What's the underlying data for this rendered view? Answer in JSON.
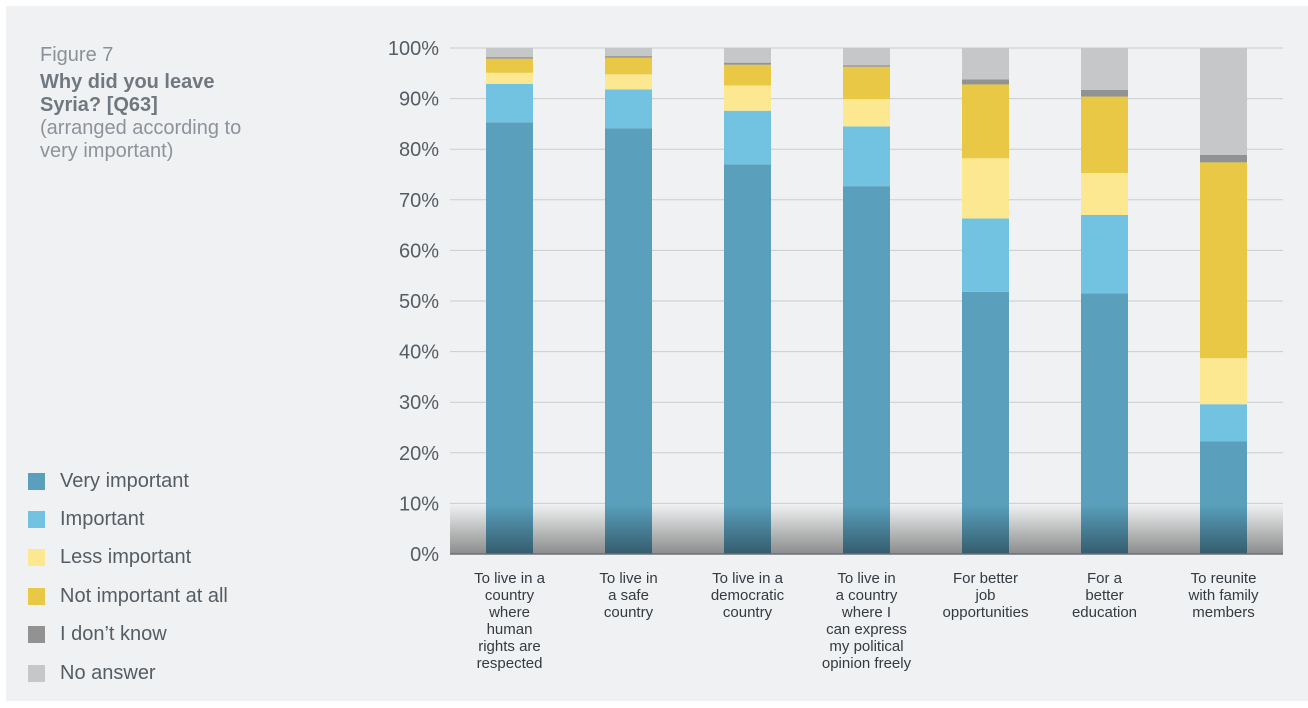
{
  "figure_label": "Figure 7",
  "title": "Why did you leave Syria? [Q63]",
  "subtitle": "(arranged according to very important)",
  "chart_data": {
    "type": "bar",
    "stacked": true,
    "ylim": [
      0,
      100
    ],
    "yticks": [
      "0%",
      "10%",
      "20%",
      "30%",
      "40%",
      "50%",
      "60%",
      "70%",
      "80%",
      "90%",
      "100%"
    ],
    "grid": true,
    "legend_position": "left",
    "categories": [
      "To live in a country where human rights are respected",
      "To live in a safe country",
      "To live in a democratic country",
      "To live in a country where I can express my political opinion freely",
      "For better job opportunities",
      "For a better education",
      "To reunite with family members"
    ],
    "category_lines": [
      [
        "To live in a",
        "country",
        "where",
        "human",
        "rights are",
        "respected"
      ],
      [
        "To live in",
        "a safe",
        "country"
      ],
      [
        "To live in a",
        "democratic",
        "country"
      ],
      [
        "To live in",
        "a country",
        "where I",
        "can express",
        "my political",
        "opinion freely"
      ],
      [
        "For better",
        "job",
        "opportunities"
      ],
      [
        "For a",
        "better",
        "education"
      ],
      [
        "To reunite",
        "with family",
        "members"
      ]
    ],
    "series": [
      {
        "name": "Very important",
        "color": "#5aa0bd",
        "values": [
          85.3,
          84.1,
          77.0,
          72.7,
          51.8,
          51.5,
          22.3
        ]
      },
      {
        "name": "Important",
        "color": "#72c2e1",
        "values": [
          7.6,
          7.7,
          10.6,
          11.8,
          14.5,
          15.5,
          7.3
        ]
      },
      {
        "name": "Less important",
        "color": "#fce891",
        "values": [
          2.2,
          3.0,
          5.0,
          5.4,
          11.9,
          8.3,
          9.1
        ]
      },
      {
        "name": "Not important at all",
        "color": "#e9c845",
        "values": [
          2.8,
          3.3,
          4.1,
          6.4,
          14.6,
          15.1,
          38.7
        ]
      },
      {
        "name": "I don’t know",
        "color": "#929292",
        "values": [
          0.3,
          0.3,
          0.4,
          0.3,
          1.0,
          1.3,
          1.5
        ]
      },
      {
        "name": "No answer",
        "color": "#c6c7c8",
        "values": [
          1.8,
          1.6,
          2.9,
          3.4,
          6.2,
          8.3,
          21.1
        ]
      }
    ]
  }
}
